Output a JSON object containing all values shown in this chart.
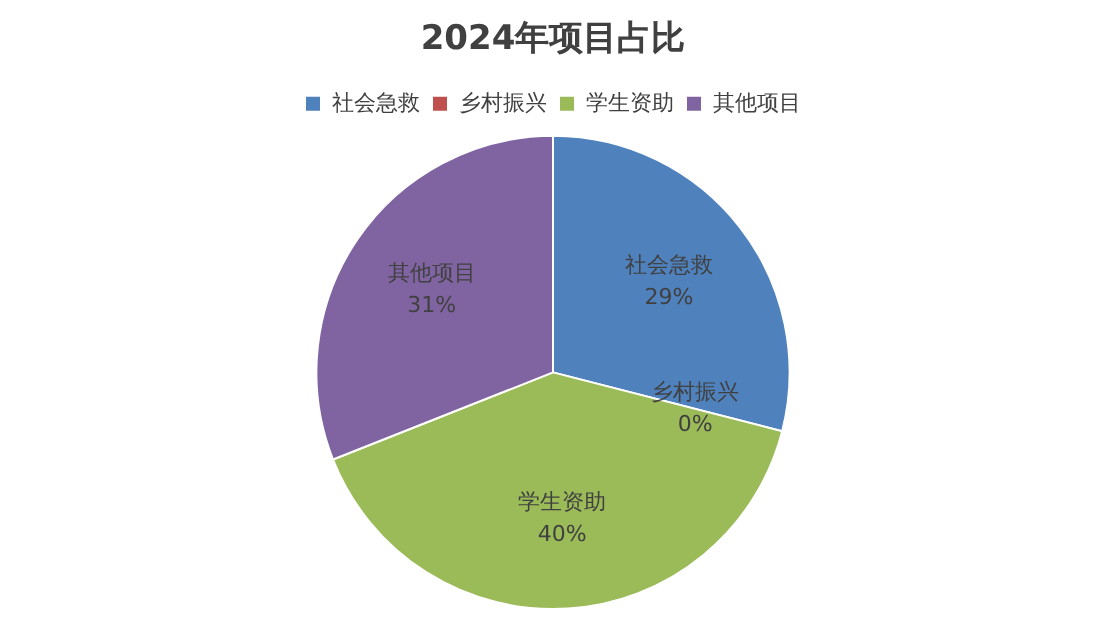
{
  "chart_data": {
    "type": "pie",
    "title": "2024年项目占比",
    "categories": [
      "社会急救",
      "乡村振兴",
      "学生资助",
      "其他项目"
    ],
    "values": [
      29,
      0,
      40,
      31
    ],
    "value_labels": [
      "29%",
      "0%",
      "40%",
      "31%"
    ],
    "colors": [
      "#4f81bd",
      "#c0504d",
      "#9bbb59",
      "#8064a2"
    ],
    "legend": "top"
  }
}
